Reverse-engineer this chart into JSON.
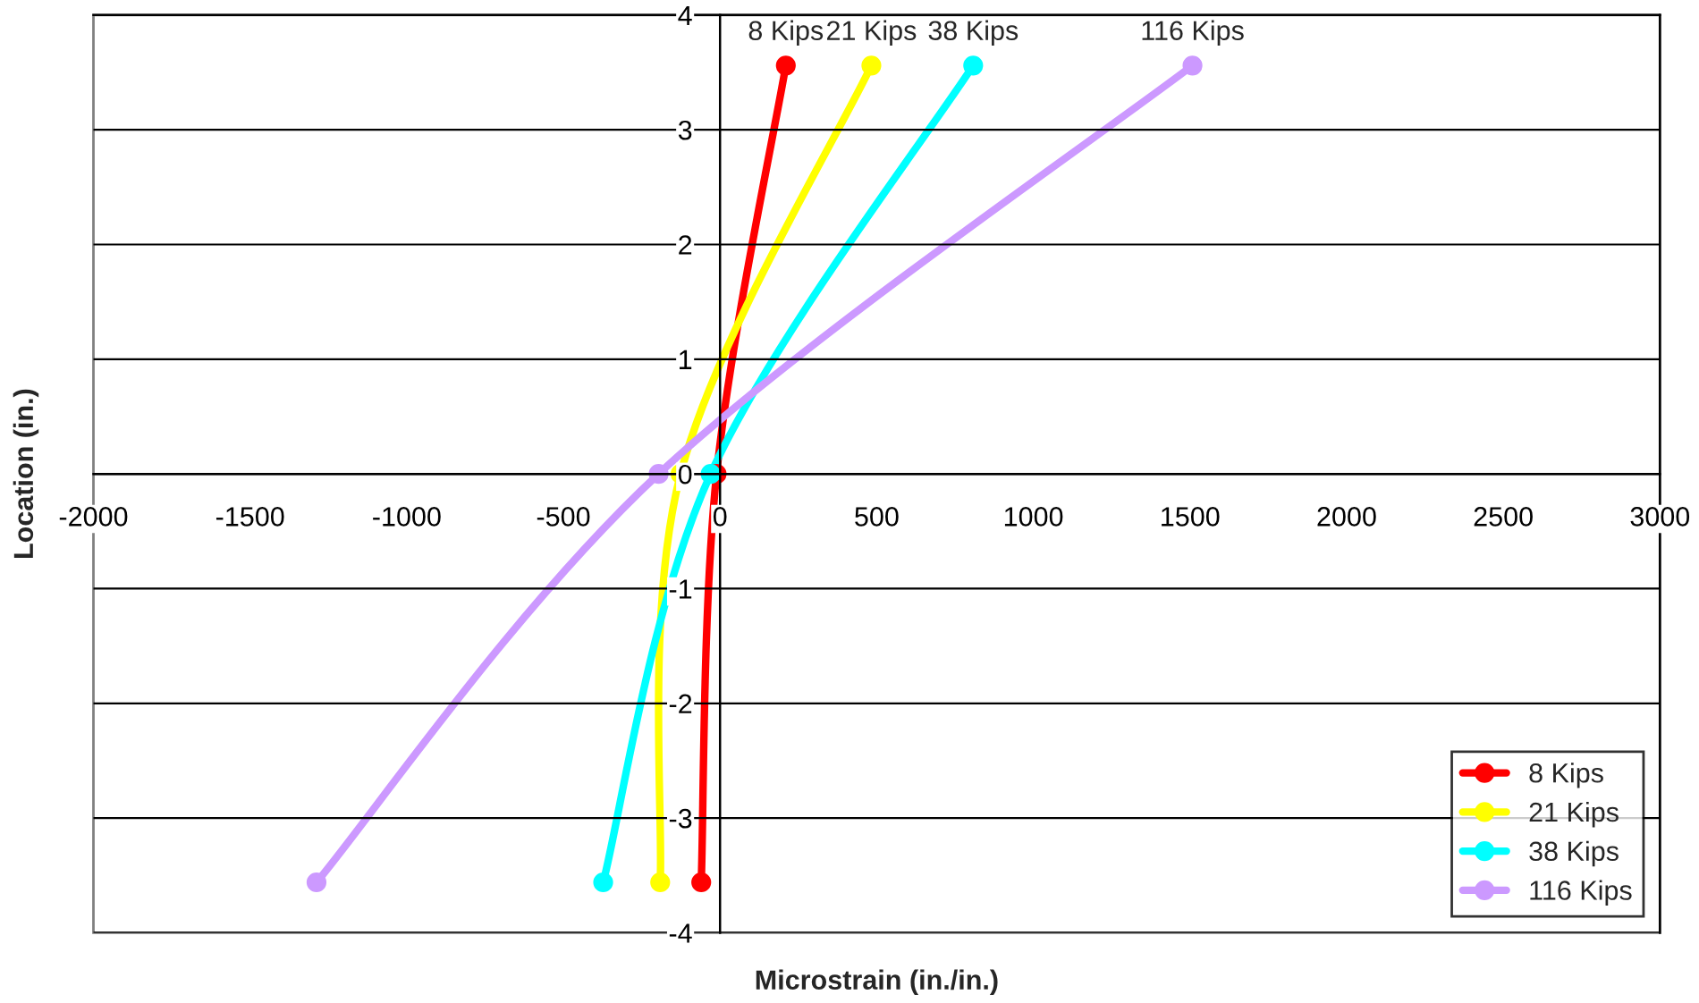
{
  "chart_data": {
    "type": "line",
    "xlabel": "Microstrain (in./in.)",
    "ylabel": "Location (in.)",
    "xlim": [
      -2000,
      3000
    ],
    "xticks": [
      -2000,
      -1500,
      -1000,
      -500,
      0,
      500,
      1000,
      1500,
      2000,
      2500,
      3000
    ],
    "ylim": [
      -4,
      4
    ],
    "yticks": [
      -4,
      -3,
      -2,
      -1,
      0,
      1,
      2,
      3,
      4
    ],
    "grid": "y",
    "legend": "bottom right",
    "marker": "circle",
    "line_style": "solid",
    "series": [
      {
        "name": "8 Kips",
        "color": "#ff0000",
        "x": [
          210,
          -11,
          -60
        ],
        "values": [
          3.56,
          0,
          -3.56
        ]
      },
      {
        "name": "21 Kips",
        "color": "#ffff00",
        "x": [
          483,
          -126,
          -191
        ],
        "values": [
          3.56,
          0,
          -3.56
        ]
      },
      {
        "name": "38 Kips",
        "color": "#00ffff",
        "x": [
          808,
          -30,
          -373
        ],
        "values": [
          3.56,
          0,
          -3.56
        ]
      },
      {
        "name": "116 Kips",
        "color": "#cc99ff",
        "x": [
          1508,
          -196,
          -1288
        ],
        "values": [
          3.56,
          0,
          -3.56
        ]
      }
    ],
    "annotations": [
      {
        "text": "8 Kips",
        "x": 210,
        "y": 3.56
      },
      {
        "text": "21 Kips",
        "x": 483,
        "y": 3.56
      },
      {
        "text": "38 Kips",
        "x": 808,
        "y": 3.56
      },
      {
        "text": "116 Kips",
        "x": 1508,
        "y": 3.56
      }
    ]
  }
}
